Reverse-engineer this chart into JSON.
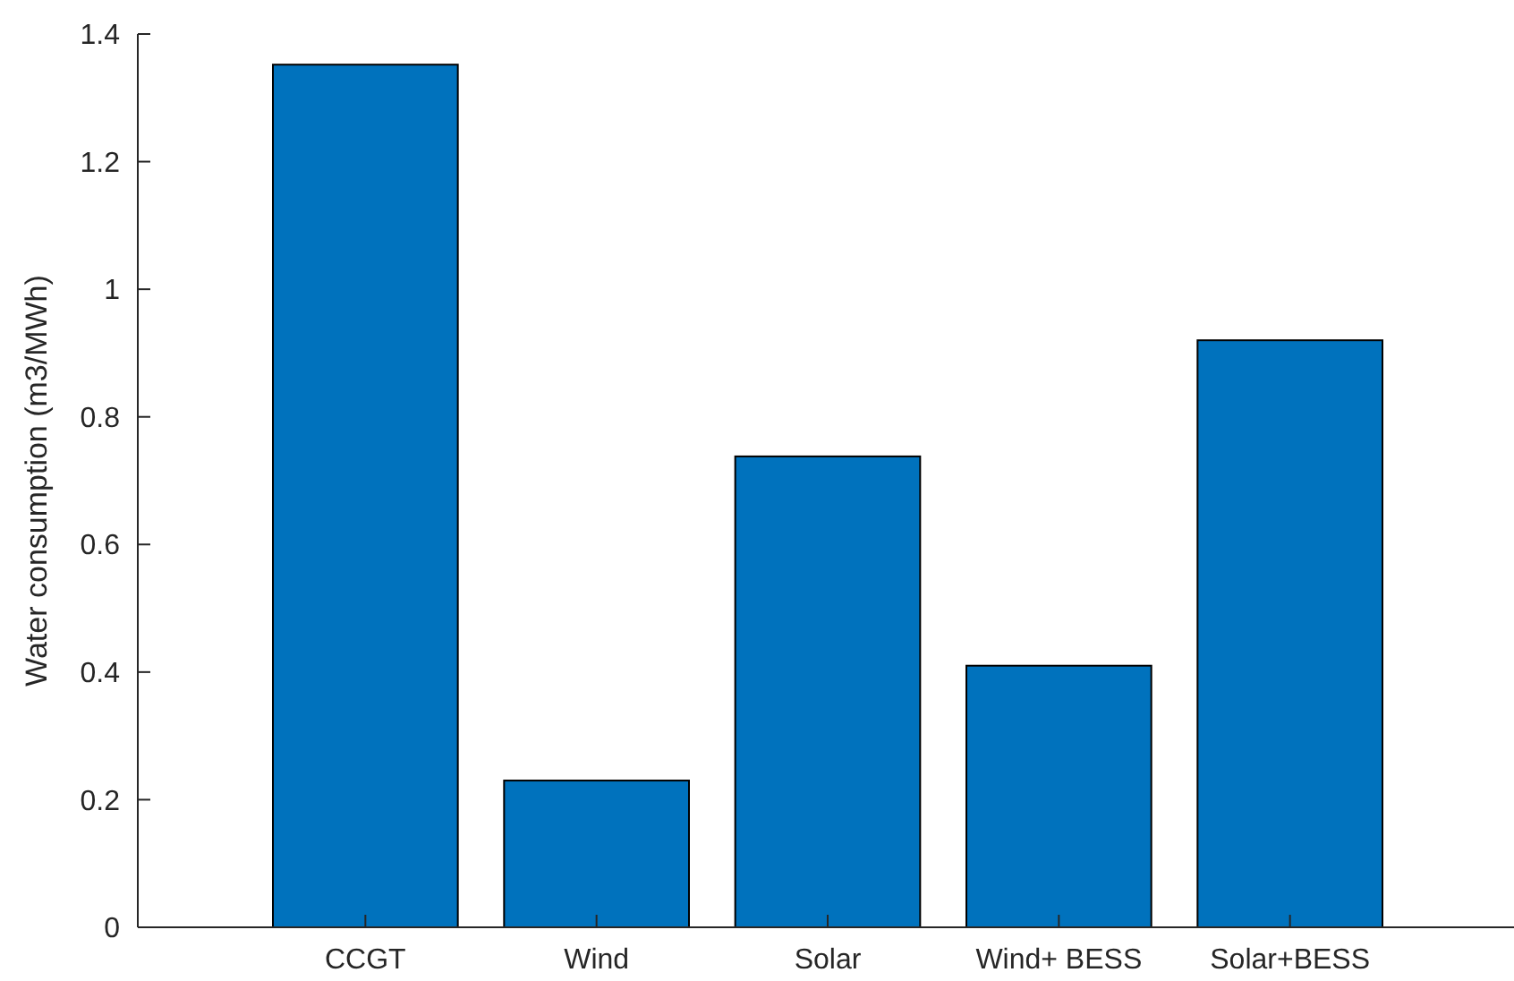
{
  "chart_data": {
    "type": "bar",
    "ylabel": "Water consumption (m3/MWh)",
    "categories": [
      "CCGT",
      "Wind",
      "Solar",
      "Wind+ BESS",
      "Solar+BESS"
    ],
    "values": [
      1.352,
      0.23,
      0.738,
      0.41,
      0.92
    ],
    "color": "#0072bd",
    "ylim": [
      0,
      1.4
    ],
    "yticks": [
      0,
      0.2,
      0.4,
      0.6,
      0.8,
      1,
      1.2,
      1.4
    ],
    "grid": false
  }
}
